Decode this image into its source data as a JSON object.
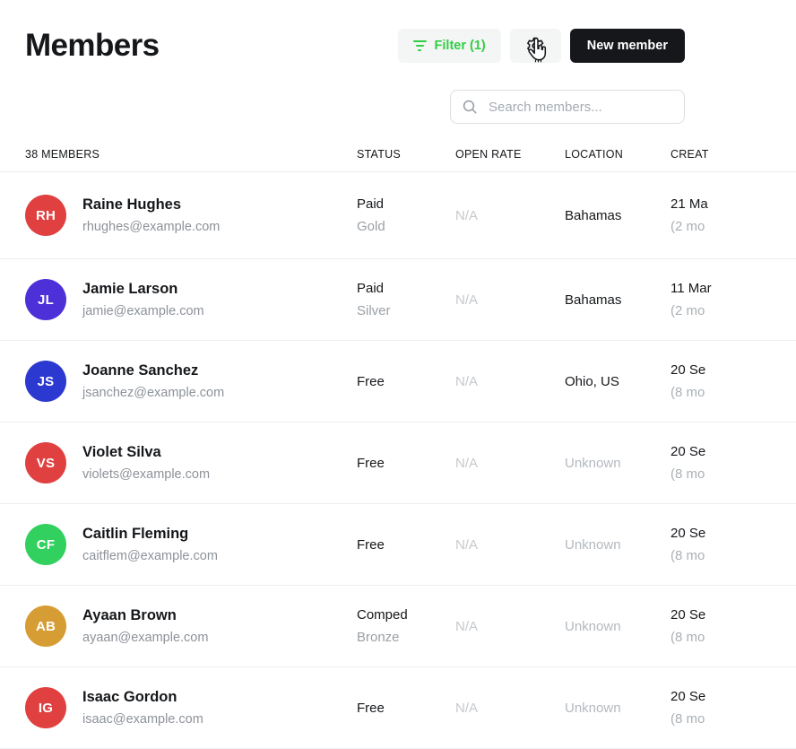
{
  "page": {
    "title": "Members"
  },
  "toolbar": {
    "filter_button_label": "Filter (1)",
    "new_member_button_label": "New member",
    "icons": {
      "filter": "filter-lines-icon",
      "settings": "gear-icon",
      "cursor": "hand-pointer-cursor"
    }
  },
  "search": {
    "placeholder": "Search members...",
    "icon": "search-icon"
  },
  "table": {
    "count_label": "38 MEMBERS",
    "columns": [
      "STATUS",
      "OPEN RATE",
      "LOCATION",
      "CREAT"
    ],
    "rows": [
      {
        "initials": "RH",
        "avatar_color": "#e04040",
        "name": "Raine Hughes",
        "email": "rhughes@example.com",
        "status": "Paid",
        "status_sub": "Gold",
        "open_rate": "N/A",
        "location": "Bahamas",
        "location_muted": false,
        "created": "21 Ma",
        "created_sub": "(2 mo"
      },
      {
        "initials": "JL",
        "avatar_color": "#4e30d8",
        "name": "Jamie Larson",
        "email": "jamie@example.com",
        "status": "Paid",
        "status_sub": "Silver",
        "open_rate": "N/A",
        "location": "Bahamas",
        "location_muted": false,
        "created": "11 Mar",
        "created_sub": "(2 mo"
      },
      {
        "initials": "JS",
        "avatar_color": "#2c39d0",
        "name": "Joanne Sanchez",
        "email": "jsanchez@example.com",
        "status": "Free",
        "status_sub": "",
        "open_rate": "N/A",
        "location": "Ohio, US",
        "location_muted": false,
        "created": "20 Se",
        "created_sub": "(8 mo"
      },
      {
        "initials": "VS",
        "avatar_color": "#e04040",
        "name": "Violet Silva",
        "email": "violets@example.com",
        "status": "Free",
        "status_sub": "",
        "open_rate": "N/A",
        "location": "Unknown",
        "location_muted": true,
        "created": "20 Se",
        "created_sub": "(8 mo"
      },
      {
        "initials": "CF",
        "avatar_color": "#31d05f",
        "name": "Caitlin Fleming",
        "email": "caitflem@example.com",
        "status": "Free",
        "status_sub": "",
        "open_rate": "N/A",
        "location": "Unknown",
        "location_muted": true,
        "created": "20 Se",
        "created_sub": "(8 mo"
      },
      {
        "initials": "AB",
        "avatar_color": "#d79d35",
        "name": "Ayaan Brown",
        "email": "ayaan@example.com",
        "status": "Comped",
        "status_sub": "Bronze",
        "open_rate": "N/A",
        "location": "Unknown",
        "location_muted": true,
        "created": "20 Se",
        "created_sub": "(8 mo"
      },
      {
        "initials": "IG",
        "avatar_color": "#e04040",
        "name": "Isaac Gordon",
        "email": "isaac@example.com",
        "status": "Free",
        "status_sub": "",
        "open_rate": "N/A",
        "location": "Unknown",
        "location_muted": true,
        "created": "20 Se",
        "created_sub": "(8 mo"
      }
    ]
  },
  "colors": {
    "accent_green": "#30cf43",
    "dark_button": "#15171a",
    "muted_text": "#b4b9be",
    "na_text": "#c6c9cd",
    "border": "#edeff1"
  }
}
